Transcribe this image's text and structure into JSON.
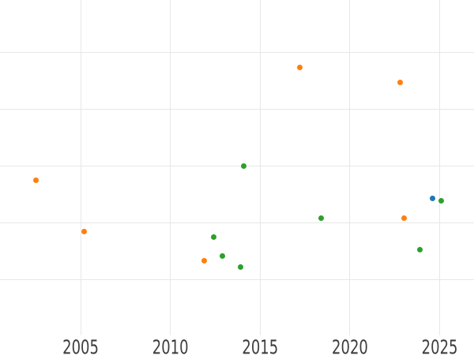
{
  "chart": {
    "background_color": "#ffffff",
    "grid_color": "#e7e7e7",
    "tick_label_color": "#3d3d3d"
  },
  "chart_data": {
    "type": "scatter",
    "title": "",
    "xlabel": "",
    "ylabel": "",
    "grid": true,
    "legend": "none",
    "x_ticks": [
      "2005",
      "2010",
      "2015",
      "2020",
      "2025"
    ],
    "x_tick_years": [
      2005,
      2010,
      2015,
      2020,
      2025
    ],
    "xlim": [
      2000.51,
      2026.91
    ],
    "ylim": [
      -0.33,
      5.92
    ],
    "y_gridline_values": [
      1,
      2,
      3,
      4,
      5
    ],
    "y_unit": "gridline-index (y tick labels not visible in image)",
    "series": [
      {
        "name": "orange-series",
        "color": "#ff7f0e",
        "points": [
          [
            2002.5,
            2.75
          ],
          [
            2005.2,
            1.85
          ],
          [
            2011.9,
            1.33
          ],
          [
            2017.2,
            4.73
          ],
          [
            2022.8,
            4.47
          ],
          [
            2023.0,
            2.08
          ]
        ]
      },
      {
        "name": "green-series",
        "color": "#2ca02c",
        "points": [
          [
            2012.4,
            1.74
          ],
          [
            2012.9,
            1.42
          ],
          [
            2013.9,
            1.22
          ],
          [
            2014.1,
            2.99
          ],
          [
            2018.4,
            2.08
          ],
          [
            2023.9,
            1.52
          ],
          [
            2025.1,
            2.39
          ]
        ]
      },
      {
        "name": "blue-series",
        "color": "#1f77b4",
        "points": [
          [
            2024.6,
            2.43
          ]
        ]
      }
    ]
  }
}
